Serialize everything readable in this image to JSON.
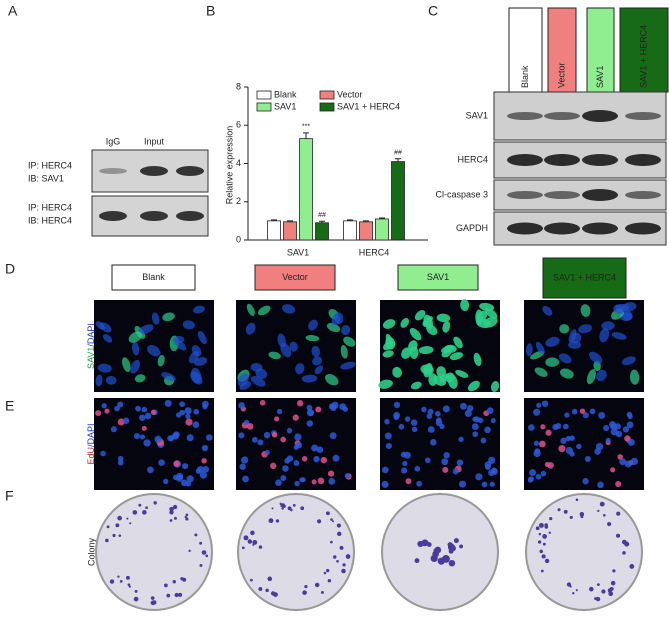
{
  "panels": {
    "a": "A",
    "b": "B",
    "c": "C",
    "d": "D",
    "e": "E",
    "f": "F"
  },
  "panel_a": {
    "lanes": [
      "IgG",
      "Input"
    ],
    "blots": [
      {
        "ip": "IP: HERC4",
        "ib": "IB: SAV1"
      },
      {
        "ip": "IP: HERC4",
        "ib": "IB: HERC4"
      }
    ]
  },
  "chart_data": {
    "type": "bar",
    "y_label": "Relative expression",
    "categories": [
      "SAV1",
      "HERC4"
    ],
    "series": [
      {
        "name": "Blank",
        "color": "#ffffff",
        "values": [
          1.0,
          1.0
        ],
        "errors": [
          0.05,
          0.05
        ]
      },
      {
        "name": "Vector",
        "color": "#f08080",
        "values": [
          0.95,
          0.95
        ],
        "errors": [
          0.05,
          0.05
        ]
      },
      {
        "name": "SAV1",
        "color": "#90ee90",
        "values": [
          5.3,
          1.1
        ],
        "errors": [
          0.3,
          0.05
        ],
        "annotations": [
          "***",
          null
        ]
      },
      {
        "name": "SAV1 + HERC4",
        "color": "#176b17",
        "values": [
          0.9,
          4.1
        ],
        "errors": [
          0.08,
          0.15
        ],
        "annotations": [
          "##",
          "##"
        ]
      }
    ],
    "ylim": [
      0,
      8
    ],
    "yticks": [
      0,
      2,
      4,
      6,
      8
    ]
  },
  "panel_c": {
    "groups": [
      "Blank",
      "Vector",
      "SAV1",
      "SAV1 + HERC4"
    ],
    "blots": [
      "SAV1",
      "HERC4",
      "Cl-caspase 3",
      "GAPDH"
    ]
  },
  "groups": [
    "Blank",
    "Vector",
    "SAV1",
    "SAV1 + HERC4"
  ],
  "rows": {
    "staining_d": [
      "SAV1",
      "/DAPI"
    ],
    "staining_e": [
      "EdU",
      "/DAPI"
    ],
    "colony": "Colony"
  }
}
